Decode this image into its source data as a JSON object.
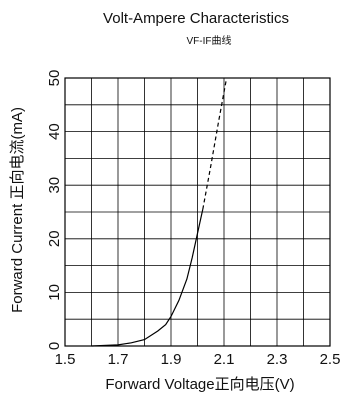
{
  "chart_data": {
    "type": "line",
    "title": "Volt-Ampere Characteristics",
    "subtitle": "VF-IF曲线",
    "xlabel": "Forward Voltage正向电压(V)",
    "ylabel": "Forward Current 正向电流(mA)",
    "xlim": [
      1.5,
      2.5
    ],
    "ylim": [
      0,
      50
    ],
    "x_ticks": [
      "1.5",
      "1.7",
      "1.9",
      "2.1",
      "2.3",
      "2.5"
    ],
    "y_ticks": [
      "0",
      "10",
      "20",
      "30",
      "40",
      "50"
    ],
    "grid": true,
    "series": [
      {
        "style": "solid",
        "x": [
          1.6,
          1.7,
          1.75,
          1.8,
          1.85,
          1.88,
          1.9,
          1.93,
          1.96,
          1.98,
          2.0,
          2.02
        ],
        "y": [
          0,
          0.2,
          0.6,
          1.2,
          2.8,
          4.0,
          5.5,
          8.5,
          12.5,
          16.5,
          21.0,
          25.5
        ]
      },
      {
        "style": "dashed",
        "x": [
          2.02,
          2.05,
          2.08,
          2.11
        ],
        "y": [
          25.5,
          33.5,
          42.0,
          50.0
        ]
      }
    ]
  }
}
